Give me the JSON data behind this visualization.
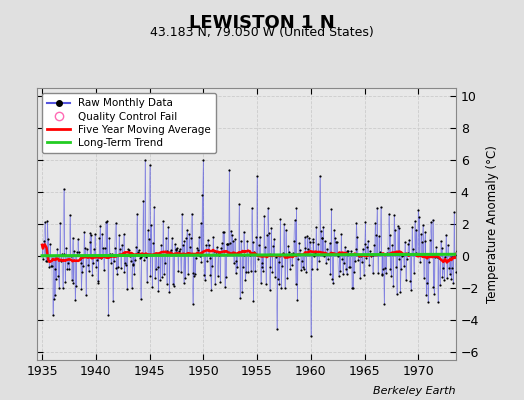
{
  "title": "LEWISTON 1 N",
  "subtitle": "43.183 N, 79.050 W (United States)",
  "ylabel": "Temperature Anomaly (°C)",
  "credit": "Berkeley Earth",
  "xlim": [
    1934.5,
    1973.5
  ],
  "ylim": [
    -6.5,
    10.5
  ],
  "yticks": [
    -6,
    -4,
    -2,
    0,
    2,
    4,
    6,
    8,
    10
  ],
  "xticks": [
    1935,
    1940,
    1945,
    1950,
    1955,
    1960,
    1965,
    1970
  ],
  "fig_facecolor": "#e0e0e0",
  "ax_facecolor": "#e8e8e8",
  "raw_line_color": "#5555dd",
  "raw_line_alpha": 0.55,
  "raw_marker_color": "black",
  "moving_avg_color": "red",
  "trend_color": "#22cc22",
  "qc_marker_color": "#ff69b4",
  "grid_color": "#cccccc",
  "seed": 42,
  "n_years": 39,
  "start_year": 1935,
  "moving_avg_window": 60
}
